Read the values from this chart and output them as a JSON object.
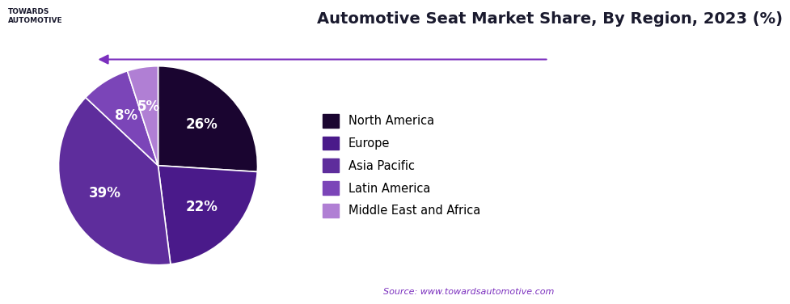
{
  "title": "Automotive Seat Market Share, By Region, 2023 (%)",
  "values": [
    26,
    22,
    39,
    8,
    5
  ],
  "labels": [
    "North America",
    "Europe",
    "Asia Pacific",
    "Latin America",
    "Middle East and Africa"
  ],
  "colors": [
    "#1a0530",
    "#4a1a8a",
    "#5e2d9c",
    "#7b45b8",
    "#b07fd4"
  ],
  "pct_labels": [
    "26%",
    "22%",
    "39%",
    "8%",
    "5%"
  ],
  "source_text": "Source: www.towardsautomotive.com",
  "source_color": "#7b2fbe",
  "background_color": "#ffffff",
  "title_fontsize": 14,
  "legend_fontsize": 10.5,
  "pct_fontsize": 12,
  "arrow_color": "#7b2fbe"
}
